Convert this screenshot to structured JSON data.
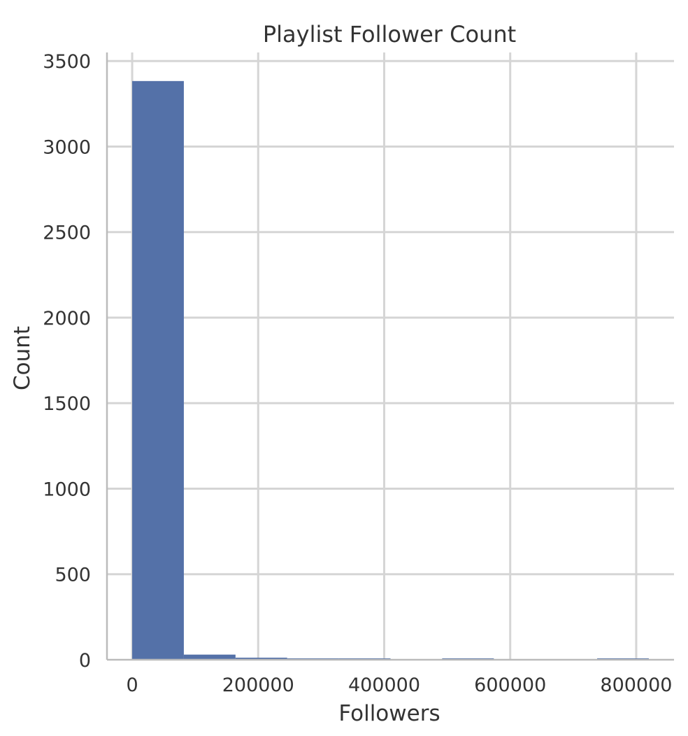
{
  "chart_data": {
    "type": "bar",
    "title": "Playlist Follower Count",
    "xlabel": "Followers",
    "ylabel": "Count",
    "bins": [
      {
        "x0": 0,
        "x1": 82000,
        "value": 3383
      },
      {
        "x0": 82000,
        "x1": 164000,
        "value": 30
      },
      {
        "x0": 164000,
        "x1": 246000,
        "value": 12
      },
      {
        "x0": 246000,
        "x1": 328000,
        "value": 4
      },
      {
        "x0": 328000,
        "x1": 410000,
        "value": 3
      },
      {
        "x0": 410000,
        "x1": 492000,
        "value": 0
      },
      {
        "x0": 492000,
        "x1": 574000,
        "value": 2
      },
      {
        "x0": 574000,
        "x1": 656000,
        "value": 0
      },
      {
        "x0": 656000,
        "x1": 738000,
        "value": 0
      },
      {
        "x0": 738000,
        "x1": 820000,
        "value": 2
      }
    ],
    "xlim": [
      -40000,
      860000
    ],
    "ylim": [
      0,
      3550
    ],
    "xticks": [
      0,
      200000,
      400000,
      600000,
      800000
    ],
    "xtick_labels": [
      "0",
      "200000",
      "400000",
      "600000",
      "800000"
    ],
    "yticks": [
      0,
      500,
      1000,
      1500,
      2000,
      2500,
      3000,
      3500
    ],
    "ytick_labels": [
      "0",
      "500",
      "1000",
      "1500",
      "2000",
      "2500",
      "3000",
      "3500"
    ],
    "grid": true,
    "legend": "none",
    "colors": {
      "bar": "#5471A8",
      "grid": "#D5D5D5",
      "axis": "#BBBBBB",
      "text": "#333333"
    }
  }
}
